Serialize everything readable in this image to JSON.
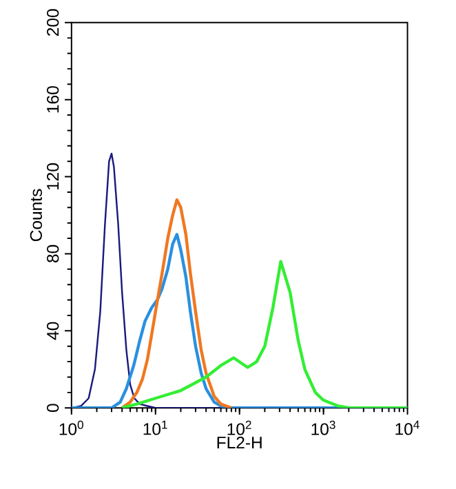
{
  "chart_data": {
    "type": "line",
    "xlabel": "FL2-H",
    "ylabel": "Counts",
    "log": "x",
    "xlim": [
      1,
      10000
    ],
    "ylim": [
      0,
      200
    ],
    "xticks": [
      {
        "value": 1,
        "label": "10$^{0}$"
      },
      {
        "value": 10,
        "label": "10$^{1}$"
      },
      {
        "value": 100,
        "label": "10$^{2}$"
      },
      {
        "value": 1000,
        "label": "10$^{3}$"
      },
      {
        "value": 10000,
        "label": "10$^{4}$"
      }
    ],
    "yticks": [
      0,
      40,
      80,
      120,
      160,
      200
    ],
    "grid": false,
    "marker": "none",
    "line_style": "solid",
    "series": [
      {
        "color": "#1a1a80",
        "x": [
          1,
          1.3,
          1.6,
          1.9,
          2.2,
          2.5,
          2.8,
          3.0,
          3.2,
          3.6,
          4.0,
          4.5,
          5.0,
          5.6,
          6.5,
          8,
          10,
          20,
          10000
        ],
        "values": [
          0,
          1,
          5,
          20,
          50,
          95,
          128,
          132,
          125,
          95,
          60,
          30,
          12,
          5,
          2,
          1,
          0,
          0,
          0
        ]
      },
      {
        "color": "#2a90e0",
        "x": [
          1,
          3,
          3.8,
          4.5,
          5.5,
          6.5,
          7.5,
          9,
          10.5,
          12,
          14,
          16,
          18,
          20,
          23,
          26,
          30,
          35,
          40,
          50,
          60,
          80,
          10000
        ],
        "values": [
          0,
          0,
          3,
          10,
          22,
          35,
          45,
          52,
          56,
          62,
          72,
          85,
          90,
          82,
          68,
          50,
          32,
          18,
          10,
          3,
          1,
          0,
          0
        ]
      },
      {
        "color": "#f07820",
        "x": [
          4,
          5,
          6,
          7,
          8,
          9,
          10,
          12,
          14,
          16,
          18,
          20,
          23,
          26,
          30,
          35,
          40,
          50,
          60,
          80
        ],
        "values": [
          0,
          3,
          8,
          15,
          25,
          38,
          50,
          70,
          88,
          100,
          108,
          104,
          90,
          70,
          50,
          30,
          18,
          6,
          2,
          0
        ]
      },
      {
        "color": "#33ee33",
        "x": [
          4,
          6,
          10,
          20,
          40,
          60,
          85,
          125,
          160,
          200,
          250,
          310,
          400,
          500,
          600,
          800,
          1000,
          1500,
          2000,
          10000
        ],
        "values": [
          0,
          2,
          5,
          9,
          16,
          22,
          26,
          21,
          24,
          32,
          52,
          76,
          60,
          35,
          20,
          8,
          4,
          1,
          0,
          0
        ]
      }
    ]
  }
}
